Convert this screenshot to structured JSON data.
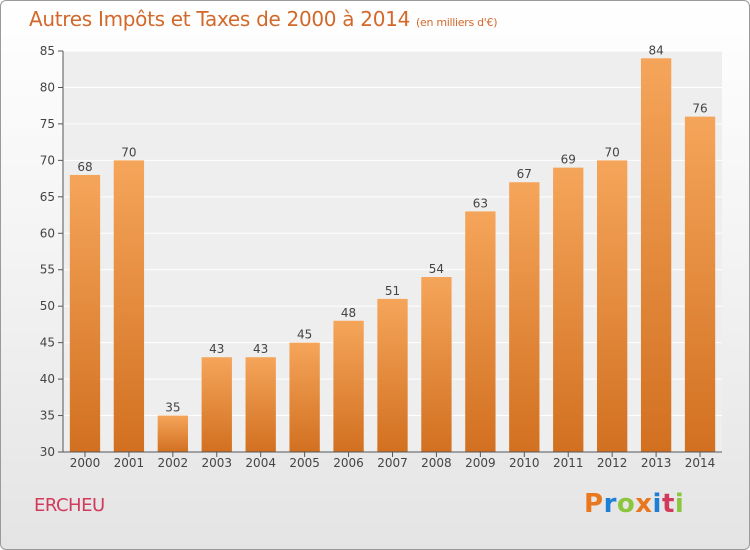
{
  "header": {
    "title": "Autres Impôts et Taxes de 2000 à 2014",
    "subtitle": "(en milliers d'€)"
  },
  "footer": {
    "commune": "ERCHEU",
    "logo_text": "Proxiti",
    "logo_colors": [
      "#e8771e",
      "#1e7fd6",
      "#8cc63f",
      "#e8771e",
      "#1e7fd6",
      "#d23a5c",
      "#8cc63f"
    ]
  },
  "chart_data": {
    "type": "bar",
    "title": "Autres Impôts et Taxes de 2000 à 2014",
    "categories": [
      "2000",
      "2001",
      "2002",
      "2003",
      "2004",
      "2005",
      "2006",
      "2007",
      "2008",
      "2009",
      "2010",
      "2011",
      "2012",
      "2013",
      "2014"
    ],
    "values": [
      68,
      70,
      35,
      43,
      43,
      45,
      48,
      51,
      54,
      63,
      67,
      69,
      70,
      84,
      76
    ],
    "ylim": [
      30,
      85
    ],
    "yticks": [
      30,
      35,
      40,
      45,
      50,
      55,
      60,
      65,
      70,
      75,
      80,
      85
    ],
    "grid": true,
    "bar_color_top": "#f5a55a",
    "bar_color_bottom": "#d27020"
  }
}
